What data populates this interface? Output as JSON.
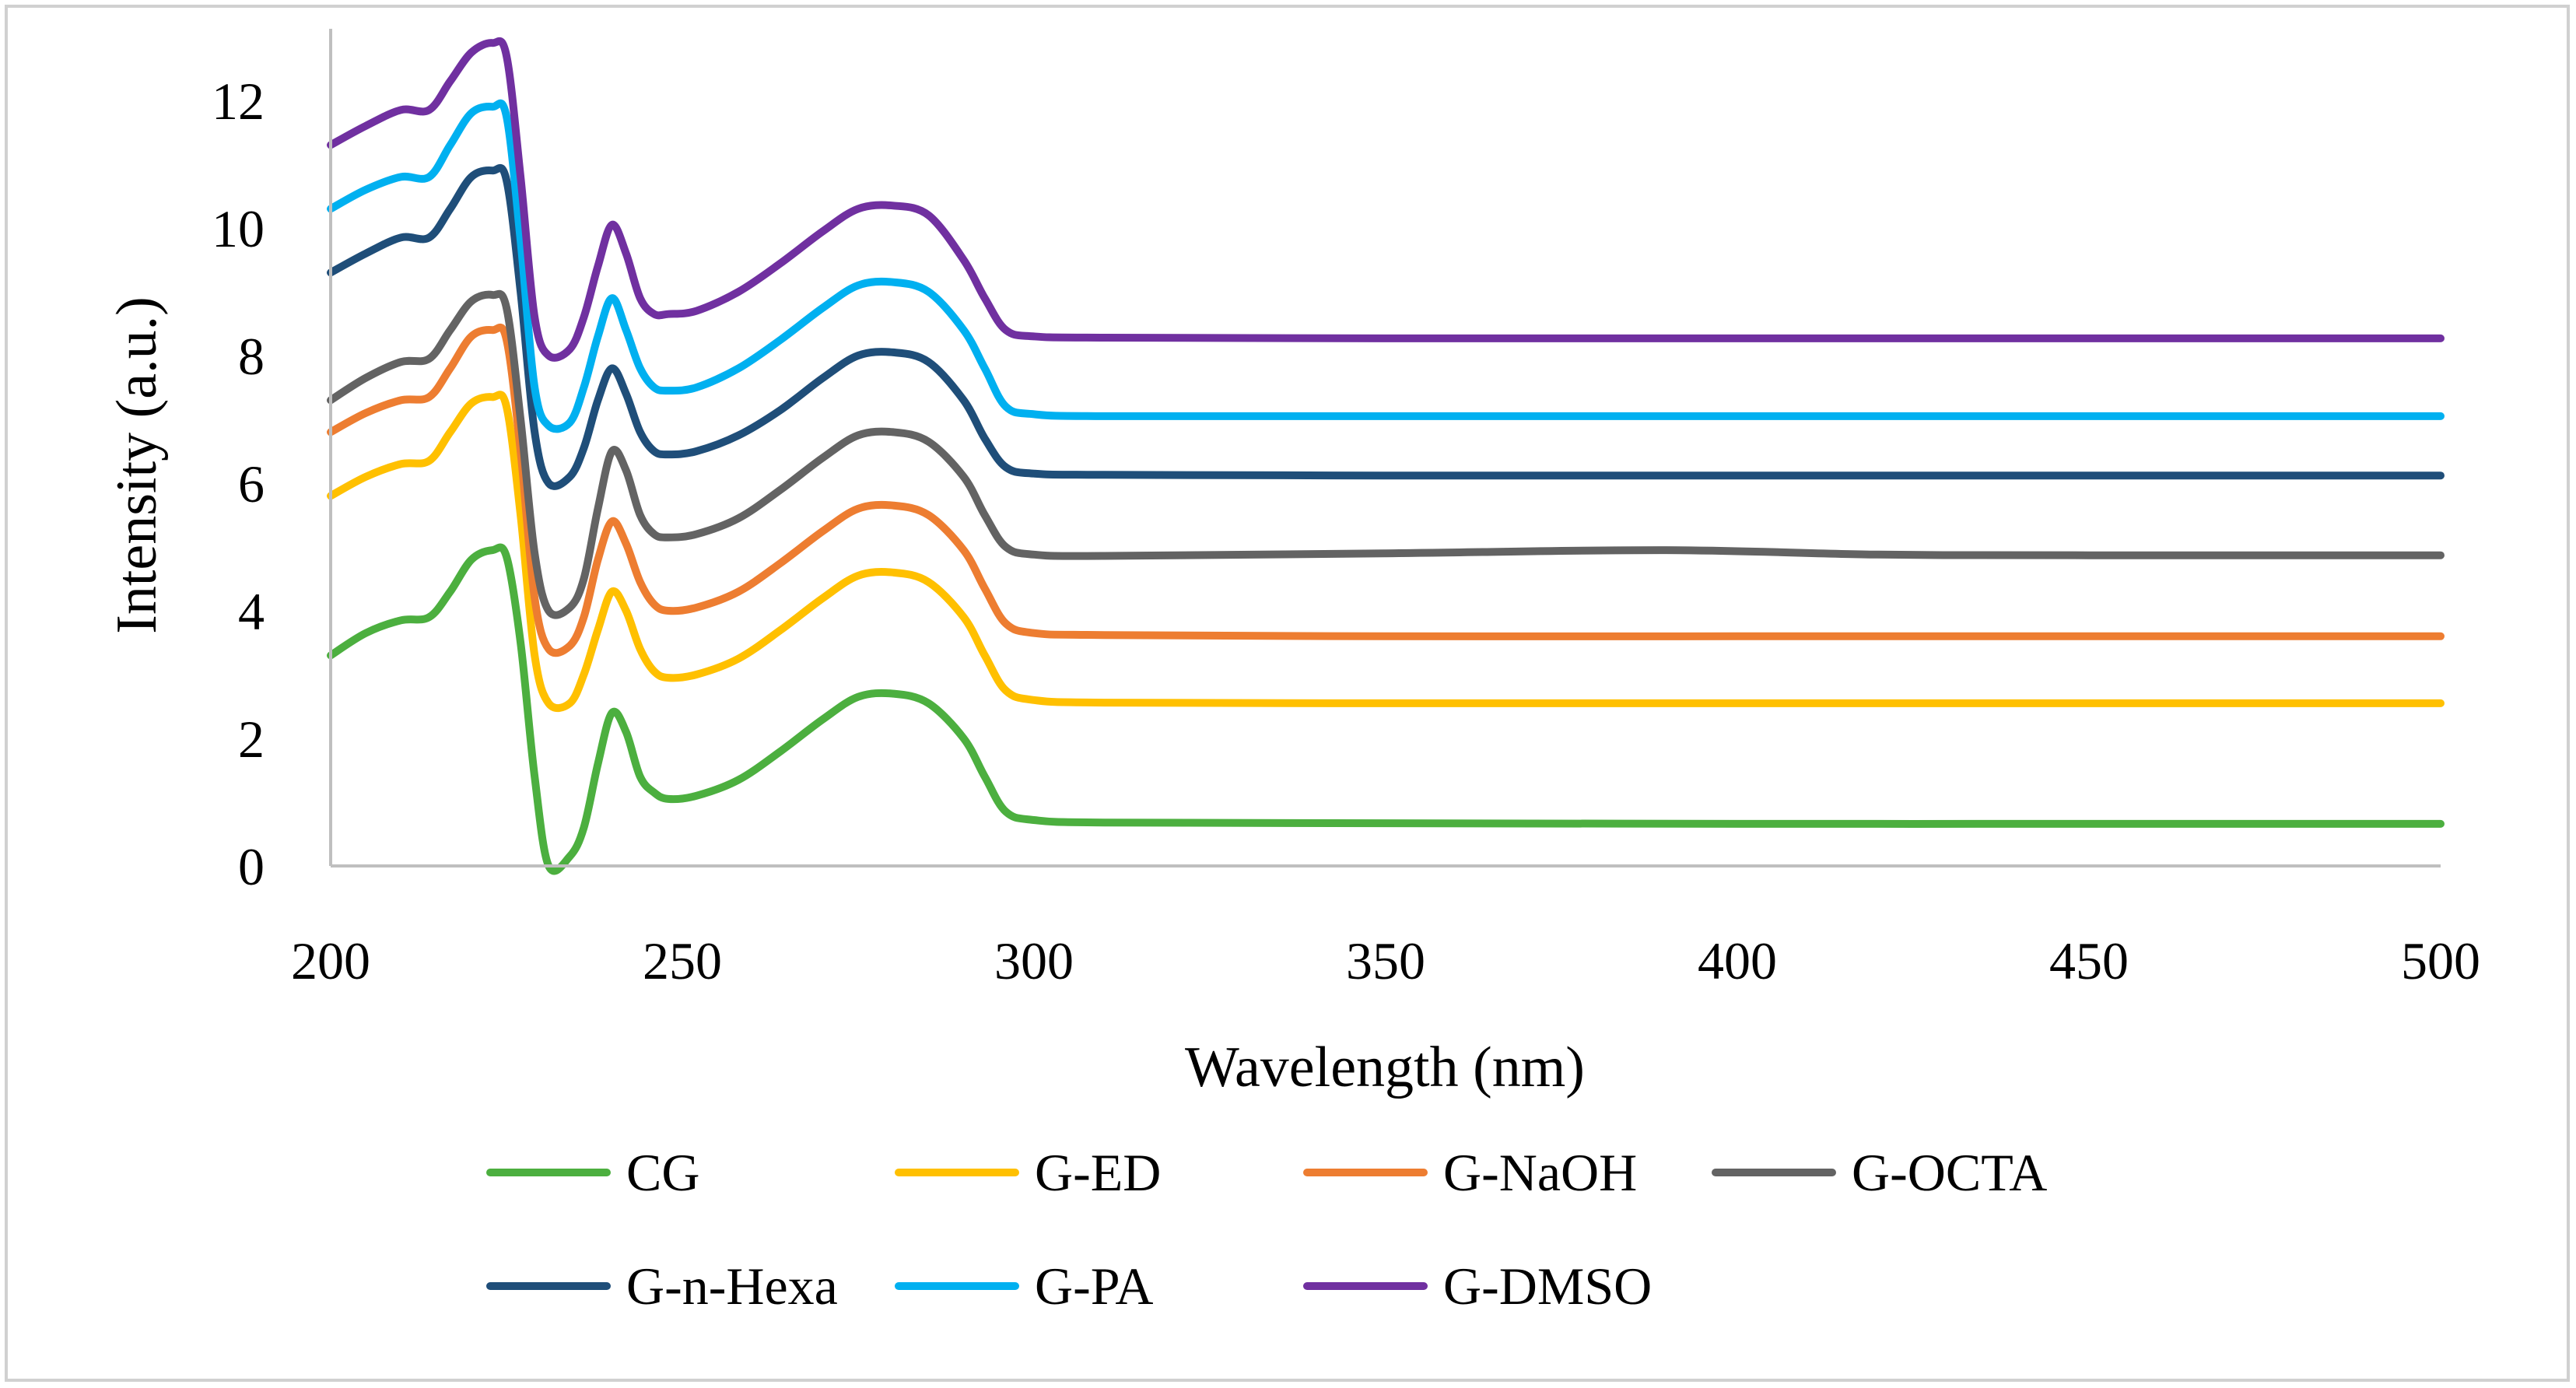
{
  "chart_data": {
    "type": "line",
    "title": "",
    "xlabel": "Wavelength (nm)",
    "ylabel": "Intensity (a.u.)",
    "xlim": [
      200,
      500
    ],
    "ylim": [
      0,
      13
    ],
    "xticks": [
      200,
      250,
      300,
      350,
      400,
      450,
      500
    ],
    "yticks": [
      0,
      2,
      4,
      6,
      8,
      10,
      12
    ],
    "grid": false,
    "legend_position": "bottom",
    "series": [
      {
        "name": "CG",
        "color": "#4caf3f",
        "points": [
          [
            200,
            3.3
          ],
          [
            205,
            3.65
          ],
          [
            210,
            3.85
          ],
          [
            214,
            3.9
          ],
          [
            217,
            4.3
          ],
          [
            220,
            4.8
          ],
          [
            223,
            4.95
          ],
          [
            225,
            4.85
          ],
          [
            227,
            3.5
          ],
          [
            229,
            1.4
          ],
          [
            231,
            0.0
          ],
          [
            234,
            0.15
          ],
          [
            236,
            0.6
          ],
          [
            238,
            1.6
          ],
          [
            240,
            2.4
          ],
          [
            242,
            2.1
          ],
          [
            244,
            1.4
          ],
          [
            246,
            1.15
          ],
          [
            248,
            1.05
          ],
          [
            252,
            1.1
          ],
          [
            258,
            1.35
          ],
          [
            264,
            1.8
          ],
          [
            270,
            2.3
          ],
          [
            275,
            2.65
          ],
          [
            280,
            2.7
          ],
          [
            285,
            2.55
          ],
          [
            290,
            2.0
          ],
          [
            293,
            1.4
          ],
          [
            296,
            0.85
          ],
          [
            300,
            0.72
          ],
          [
            310,
            0.68
          ],
          [
            350,
            0.67
          ],
          [
            400,
            0.66
          ],
          [
            450,
            0.66
          ],
          [
            500,
            0.66
          ]
        ]
      },
      {
        "name": "G-ED",
        "color": "#ffc000",
        "points": [
          [
            200,
            5.8
          ],
          [
            205,
            6.1
          ],
          [
            210,
            6.3
          ],
          [
            214,
            6.35
          ],
          [
            217,
            6.8
          ],
          [
            220,
            7.25
          ],
          [
            223,
            7.35
          ],
          [
            225,
            7.2
          ],
          [
            227,
            5.5
          ],
          [
            229,
            3.3
          ],
          [
            231,
            2.55
          ],
          [
            234,
            2.55
          ],
          [
            236,
            3.0
          ],
          [
            238,
            3.7
          ],
          [
            240,
            4.3
          ],
          [
            242,
            4.0
          ],
          [
            244,
            3.4
          ],
          [
            246,
            3.05
          ],
          [
            248,
            2.95
          ],
          [
            252,
            3.0
          ],
          [
            258,
            3.25
          ],
          [
            264,
            3.7
          ],
          [
            270,
            4.2
          ],
          [
            275,
            4.55
          ],
          [
            280,
            4.6
          ],
          [
            285,
            4.45
          ],
          [
            290,
            3.9
          ],
          [
            293,
            3.3
          ],
          [
            296,
            2.75
          ],
          [
            300,
            2.6
          ],
          [
            310,
            2.56
          ],
          [
            350,
            2.55
          ],
          [
            400,
            2.55
          ],
          [
            450,
            2.55
          ],
          [
            500,
            2.55
          ]
        ]
      },
      {
        "name": "G-NaOH",
        "color": "#ed7d31",
        "points": [
          [
            200,
            6.8
          ],
          [
            205,
            7.1
          ],
          [
            210,
            7.3
          ],
          [
            214,
            7.35
          ],
          [
            217,
            7.8
          ],
          [
            220,
            8.3
          ],
          [
            223,
            8.4
          ],
          [
            225,
            8.25
          ],
          [
            227,
            6.5
          ],
          [
            229,
            4.2
          ],
          [
            231,
            3.4
          ],
          [
            234,
            3.45
          ],
          [
            236,
            3.9
          ],
          [
            238,
            4.8
          ],
          [
            240,
            5.4
          ],
          [
            242,
            5.05
          ],
          [
            244,
            4.45
          ],
          [
            246,
            4.1
          ],
          [
            248,
            4.0
          ],
          [
            252,
            4.05
          ],
          [
            258,
            4.3
          ],
          [
            264,
            4.75
          ],
          [
            270,
            5.25
          ],
          [
            275,
            5.6
          ],
          [
            280,
            5.65
          ],
          [
            285,
            5.5
          ],
          [
            290,
            4.95
          ],
          [
            293,
            4.35
          ],
          [
            296,
            3.8
          ],
          [
            300,
            3.65
          ],
          [
            310,
            3.62
          ],
          [
            350,
            3.6
          ],
          [
            400,
            3.6
          ],
          [
            450,
            3.6
          ],
          [
            500,
            3.6
          ]
        ]
      },
      {
        "name": "G-OCTA",
        "color": "#636363",
        "points": [
          [
            200,
            7.3
          ],
          [
            205,
            7.65
          ],
          [
            210,
            7.9
          ],
          [
            214,
            7.95
          ],
          [
            217,
            8.4
          ],
          [
            220,
            8.85
          ],
          [
            223,
            8.95
          ],
          [
            225,
            8.75
          ],
          [
            227,
            7.0
          ],
          [
            229,
            4.9
          ],
          [
            231,
            4.0
          ],
          [
            234,
            4.05
          ],
          [
            236,
            4.5
          ],
          [
            238,
            5.6
          ],
          [
            240,
            6.5
          ],
          [
            242,
            6.2
          ],
          [
            244,
            5.5
          ],
          [
            246,
            5.2
          ],
          [
            248,
            5.15
          ],
          [
            252,
            5.2
          ],
          [
            258,
            5.45
          ],
          [
            264,
            5.9
          ],
          [
            270,
            6.4
          ],
          [
            275,
            6.75
          ],
          [
            280,
            6.8
          ],
          [
            285,
            6.65
          ],
          [
            290,
            6.1
          ],
          [
            293,
            5.5
          ],
          [
            296,
            5.0
          ],
          [
            300,
            4.88
          ],
          [
            310,
            4.86
          ],
          [
            350,
            4.9
          ],
          [
            390,
            4.95
          ],
          [
            420,
            4.88
          ],
          [
            450,
            4.87
          ],
          [
            500,
            4.87
          ]
        ]
      },
      {
        "name": "G-n-Hexa",
        "color": "#1f4e79",
        "points": [
          [
            200,
            9.3
          ],
          [
            205,
            9.6
          ],
          [
            210,
            9.85
          ],
          [
            214,
            9.85
          ],
          [
            217,
            10.3
          ],
          [
            220,
            10.8
          ],
          [
            223,
            10.9
          ],
          [
            225,
            10.75
          ],
          [
            227,
            9.0
          ],
          [
            229,
            6.8
          ],
          [
            231,
            6.0
          ],
          [
            234,
            6.1
          ],
          [
            236,
            6.55
          ],
          [
            238,
            7.3
          ],
          [
            240,
            7.8
          ],
          [
            242,
            7.4
          ],
          [
            244,
            6.8
          ],
          [
            246,
            6.5
          ],
          [
            248,
            6.45
          ],
          [
            252,
            6.5
          ],
          [
            258,
            6.75
          ],
          [
            264,
            7.15
          ],
          [
            270,
            7.65
          ],
          [
            275,
            8.0
          ],
          [
            280,
            8.05
          ],
          [
            285,
            7.9
          ],
          [
            290,
            7.3
          ],
          [
            293,
            6.7
          ],
          [
            296,
            6.25
          ],
          [
            300,
            6.15
          ],
          [
            310,
            6.13
          ],
          [
            350,
            6.12
          ],
          [
            400,
            6.12
          ],
          [
            450,
            6.12
          ],
          [
            500,
            6.12
          ]
        ]
      },
      {
        "name": "G-PA",
        "color": "#00b0f0",
        "points": [
          [
            200,
            10.3
          ],
          [
            205,
            10.6
          ],
          [
            210,
            10.8
          ],
          [
            214,
            10.8
          ],
          [
            217,
            11.3
          ],
          [
            220,
            11.8
          ],
          [
            223,
            11.9
          ],
          [
            225,
            11.75
          ],
          [
            227,
            9.8
          ],
          [
            229,
            7.5
          ],
          [
            231,
            6.9
          ],
          [
            234,
            6.95
          ],
          [
            236,
            7.5
          ],
          [
            238,
            8.3
          ],
          [
            240,
            8.9
          ],
          [
            242,
            8.4
          ],
          [
            244,
            7.8
          ],
          [
            246,
            7.5
          ],
          [
            248,
            7.45
          ],
          [
            252,
            7.5
          ],
          [
            258,
            7.8
          ],
          [
            264,
            8.25
          ],
          [
            270,
            8.75
          ],
          [
            275,
            9.1
          ],
          [
            280,
            9.15
          ],
          [
            285,
            9.0
          ],
          [
            290,
            8.4
          ],
          [
            293,
            7.8
          ],
          [
            296,
            7.2
          ],
          [
            300,
            7.08
          ],
          [
            310,
            7.05
          ],
          [
            350,
            7.05
          ],
          [
            400,
            7.05
          ],
          [
            450,
            7.05
          ],
          [
            500,
            7.05
          ]
        ]
      },
      {
        "name": "G-DMSO",
        "color": "#7030a0",
        "points": [
          [
            200,
            11.3
          ],
          [
            205,
            11.6
          ],
          [
            210,
            11.85
          ],
          [
            214,
            11.85
          ],
          [
            217,
            12.3
          ],
          [
            220,
            12.75
          ],
          [
            223,
            12.9
          ],
          [
            225,
            12.7
          ],
          [
            227,
            10.8
          ],
          [
            229,
            8.6
          ],
          [
            231,
            8.0
          ],
          [
            234,
            8.1
          ],
          [
            236,
            8.6
          ],
          [
            238,
            9.4
          ],
          [
            240,
            10.05
          ],
          [
            242,
            9.6
          ],
          [
            244,
            8.9
          ],
          [
            246,
            8.65
          ],
          [
            248,
            8.65
          ],
          [
            252,
            8.7
          ],
          [
            258,
            9.0
          ],
          [
            264,
            9.45
          ],
          [
            270,
            9.95
          ],
          [
            275,
            10.3
          ],
          [
            280,
            10.35
          ],
          [
            285,
            10.2
          ],
          [
            290,
            9.5
          ],
          [
            293,
            8.9
          ],
          [
            296,
            8.4
          ],
          [
            300,
            8.3
          ],
          [
            310,
            8.28
          ],
          [
            350,
            8.27
          ],
          [
            400,
            8.27
          ],
          [
            450,
            8.27
          ],
          [
            500,
            8.27
          ]
        ]
      }
    ]
  }
}
